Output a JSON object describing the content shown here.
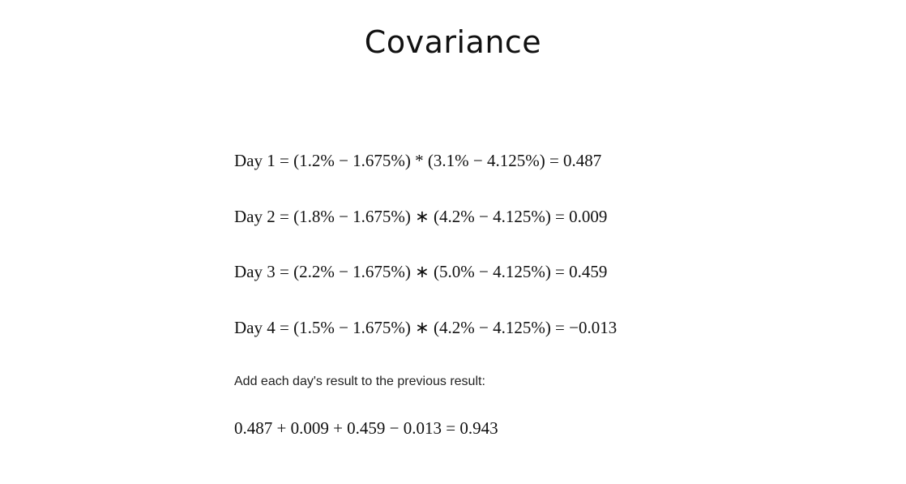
{
  "title": "Covariance",
  "equations": [
    "Day 1 = (1.2% − 1.675%) * (3.1% − 4.125%) = 0.487",
    "Day 2 = (1.8% − 1.675%) ∗ (4.2% − 4.125%) = 0.009",
    "Day 3 = (2.2% − 1.675%) ∗ (5.0% − 4.125%) = 0.459",
    "Day 4 = (1.5% − 1.675%) ∗ (4.2% − 4.125%) = −0.013"
  ],
  "instruction": "Add each day's result to the previous result:",
  "sum_equation": "0.487 + 0.009 + 0.459 − 0.013 = 0.943"
}
